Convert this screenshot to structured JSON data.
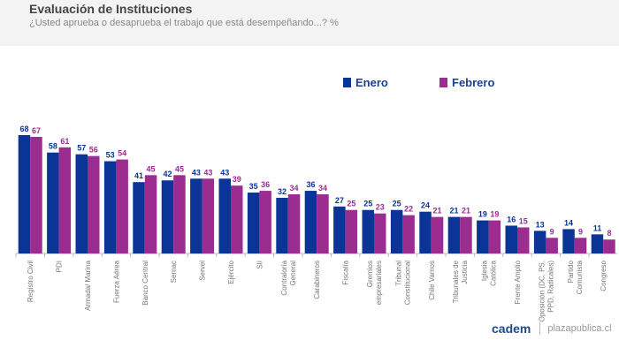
{
  "header": {
    "title": "Evaluación de Instituciones",
    "subtitle": "¿Usted aprueba o desaprueba el trabajo que está desempeñando...? %"
  },
  "footer": {
    "logo": "cadem",
    "site": "plazapublica.cl"
  },
  "colors": {
    "enero": "#0a3596",
    "febrero": "#9b2d91"
  },
  "chart_data": {
    "type": "bar",
    "title": "Evaluación de Instituciones",
    "ylim": [
      0,
      70
    ],
    "legend_position": "top-right",
    "categories": [
      "Registro Civil",
      "PDI",
      "Armada/ Marina",
      "Fuerza Aérea",
      "Banco Central",
      "Sernac",
      "Servel",
      "Ejército",
      "SII",
      "Contraloría General",
      "Carabineros",
      "Fiscalía",
      "Gremios empresariales",
      "Tribunal Constitucional",
      "Chile Vamos",
      "Tribunales de Justicia",
      "Iglesia Católica",
      "Frente Amplio",
      "Oposición (DC, PS, PPD, Radicales)",
      "Partido Comunista",
      "Congreso"
    ],
    "series": [
      {
        "name": "Enero",
        "values": [
          68,
          58,
          57,
          53,
          41,
          42,
          43,
          43,
          35,
          32,
          36,
          27,
          25,
          25,
          24,
          21,
          19,
          16,
          13,
          14,
          11
        ]
      },
      {
        "name": "Febrero",
        "values": [
          67,
          61,
          56,
          54,
          45,
          45,
          43,
          39,
          36,
          34,
          34,
          25,
          23,
          22,
          21,
          21,
          19,
          15,
          9,
          9,
          8
        ]
      }
    ]
  }
}
